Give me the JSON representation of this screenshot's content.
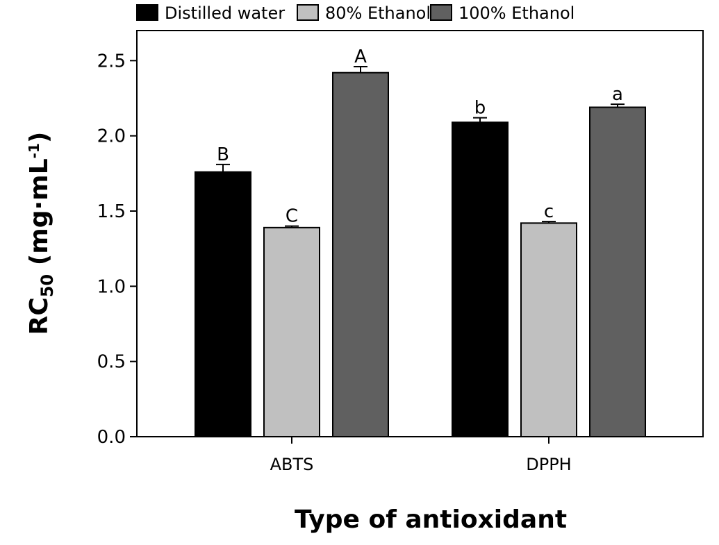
{
  "chart_data": {
    "type": "bar",
    "categories": [
      "ABTS",
      "DPPH"
    ],
    "series": [
      {
        "name": "Distilled water",
        "color": "#000000",
        "values": [
          1.76,
          2.09
        ],
        "errors": [
          0.05,
          0.03
        ],
        "labels": [
          "B",
          "b"
        ]
      },
      {
        "name": "80% Ethanol",
        "color": "#c0c0c0",
        "values": [
          1.39,
          1.42
        ],
        "errors": [
          0.01,
          0.01
        ],
        "labels": [
          "C",
          "c"
        ]
      },
      {
        "name": "100% Ethanol",
        "color": "#606060",
        "values": [
          2.42,
          2.19
        ],
        "errors": [
          0.04,
          0.02
        ],
        "labels": [
          "A",
          "a"
        ]
      }
    ],
    "xlabel": "Type of antioxidant",
    "ylabel": {
      "main": "RC",
      "sub": "50",
      "unit_open": " (mg·mL",
      "sup": "-1",
      "unit_close": ")"
    },
    "ylim": [
      0,
      2.7
    ],
    "yticks": [
      "0.0",
      "0.5",
      "1.0",
      "1.5",
      "2.0",
      "2.5"
    ],
    "ytick_values": [
      0,
      0.5,
      1.0,
      1.5,
      2.0,
      2.5
    ],
    "legend_position": "top",
    "grid": false
  }
}
